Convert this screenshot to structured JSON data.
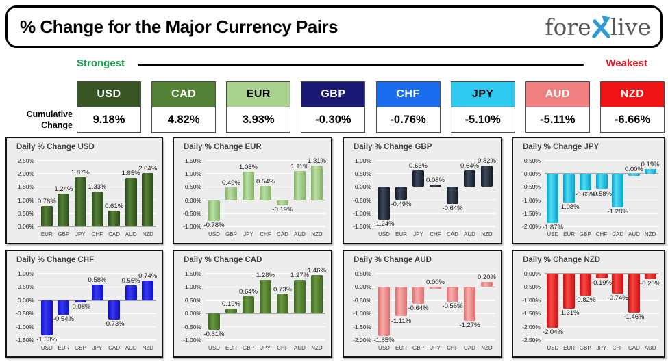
{
  "header": {
    "title": "% Change for the Major Currency Pairs",
    "logo": {
      "pre": "fore",
      "post": "live",
      "x_color": "#2E9BD6",
      "text_color": "#58595B"
    }
  },
  "legend": {
    "strongest": "Strongest",
    "weakest": "Weakest",
    "strongest_color": "#13A24A",
    "weakest_color": "#EC1C24"
  },
  "cumulative": {
    "label_line1": "Cumulative",
    "label_line2": "Change",
    "items": [
      {
        "code": "USD",
        "value": "9.18%",
        "bg": "#375623",
        "fg": "#FFFFFF"
      },
      {
        "code": "CAD",
        "value": "4.82%",
        "bg": "#538135",
        "fg": "#FFFFFF"
      },
      {
        "code": "EUR",
        "value": "3.93%",
        "bg": "#A9D18E",
        "fg": "#000000"
      },
      {
        "code": "GBP",
        "value": "-0.30%",
        "bg": "#191973",
        "fg": "#FFFFFF"
      },
      {
        "code": "CHF",
        "value": "-0.76%",
        "bg": "#1C6DED",
        "fg": "#FFFFFF"
      },
      {
        "code": "JPY",
        "value": "-5.10%",
        "bg": "#2EC9F0",
        "fg": "#000000"
      },
      {
        "code": "AUD",
        "value": "-5.11%",
        "bg": "#F08080",
        "fg": "#FFFFFF"
      },
      {
        "code": "NZD",
        "value": "-6.66%",
        "bg": "#F01414",
        "fg": "#FFFFFF"
      }
    ]
  },
  "chart_data": [
    {
      "type": "bar",
      "key": "usd",
      "title": "Daily % Change USD",
      "categories": [
        "EUR",
        "GBP",
        "JPY",
        "CHF",
        "CAD",
        "AUD",
        "NZD"
      ],
      "values": [
        0.78,
        1.24,
        1.87,
        1.33,
        0.61,
        1.85,
        2.04
      ],
      "ylim": [
        0.0,
        2.5
      ],
      "ytick_step": 0.5,
      "grid": true,
      "legend": "none",
      "bar_color_dark": "#2C4A1E",
      "bar_color_light": "#558136"
    },
    {
      "type": "bar",
      "key": "eur",
      "title": "Daily % Change EUR",
      "categories": [
        "USD",
        "GBP",
        "JPY",
        "CHF",
        "CAD",
        "AUD",
        "NZD"
      ],
      "values": [
        -0.78,
        0.49,
        1.08,
        0.54,
        -0.19,
        1.11,
        1.31
      ],
      "ylim": [
        -1.0,
        1.5
      ],
      "ytick_step": 0.5,
      "grid": true,
      "legend": "none",
      "bar_color_dark": "#83B264",
      "bar_color_light": "#BCDFA6"
    },
    {
      "type": "bar",
      "key": "gbp",
      "title": "Daily % Change GBP",
      "categories": [
        "USD",
        "EUR",
        "JPY",
        "CHF",
        "CAD",
        "AUD",
        "NZD"
      ],
      "values": [
        -1.24,
        -0.49,
        0.63,
        0.08,
        -0.64,
        0.64,
        0.82
      ],
      "ylim": [
        -1.5,
        1.0
      ],
      "ytick_step": 0.5,
      "grid": true,
      "legend": "none",
      "bar_color_dark": "#141A24",
      "bar_color_light": "#3C4A5C"
    },
    {
      "type": "bar",
      "key": "jpy",
      "title": "Daily % Change JPY",
      "categories": [
        "USD",
        "EUR",
        "GBP",
        "CHF",
        "CAD",
        "AUD",
        "NZD"
      ],
      "values": [
        -1.87,
        -1.08,
        -0.63,
        -0.58,
        -1.28,
        0.0,
        0.19
      ],
      "ylim": [
        -2.0,
        0.5
      ],
      "ytick_step": 0.5,
      "grid": true,
      "legend": "none",
      "bar_color_dark": "#00A3CC",
      "bar_color_light": "#53DAF6"
    },
    {
      "type": "bar",
      "key": "chf",
      "title": "Daily % Change CHF",
      "categories": [
        "USD",
        "EUR",
        "GBP",
        "JPY",
        "CAD",
        "AUD",
        "NZD"
      ],
      "values": [
        -1.33,
        -0.54,
        -0.08,
        0.58,
        -0.73,
        0.56,
        0.74
      ],
      "ylim": [
        -1.5,
        1.0
      ],
      "ytick_step": 0.5,
      "grid": true,
      "legend": "none",
      "bar_color_dark": "#0E0EC2",
      "bar_color_light": "#3838F2"
    },
    {
      "type": "bar",
      "key": "cad",
      "title": "Daily % Change CAD",
      "categories": [
        "USD",
        "EUR",
        "GBP",
        "JPY",
        "CHF",
        "AUD",
        "NZD"
      ],
      "values": [
        -0.61,
        0.19,
        0.64,
        1.28,
        0.73,
        1.27,
        1.46
      ],
      "ylim": [
        -1.0,
        1.5
      ],
      "ytick_step": 0.5,
      "grid": true,
      "legend": "none",
      "bar_color_dark": "#3F6824",
      "bar_color_light": "#689740"
    },
    {
      "type": "bar",
      "key": "aud",
      "title": "Daily % Change AUD",
      "categories": [
        "USD",
        "EUR",
        "GBP",
        "JPY",
        "CHF",
        "CAD",
        "NZD"
      ],
      "values": [
        -1.85,
        -1.11,
        -0.64,
        0.0,
        -0.56,
        -1.27,
        0.2
      ],
      "ylim": [
        -2.0,
        0.5
      ],
      "ytick_step": 0.5,
      "grid": true,
      "legend": "none",
      "bar_color_dark": "#E06E6E",
      "bar_color_light": "#F7ACAC"
    },
    {
      "type": "bar",
      "key": "nzd",
      "title": "Daily % Change NZD",
      "categories": [
        "USD",
        "EUR",
        "GBP",
        "JPY",
        "CHF",
        "CAD",
        "AUD"
      ],
      "values": [
        -2.04,
        -1.31,
        -0.82,
        -0.19,
        -0.74,
        -1.46,
        -0.2
      ],
      "ylim": [
        -2.5,
        0.0
      ],
      "ytick_step": 0.5,
      "grid": true,
      "legend": "none",
      "bar_color_dark": "#CE0D12",
      "bar_color_light": "#F64A42"
    }
  ]
}
